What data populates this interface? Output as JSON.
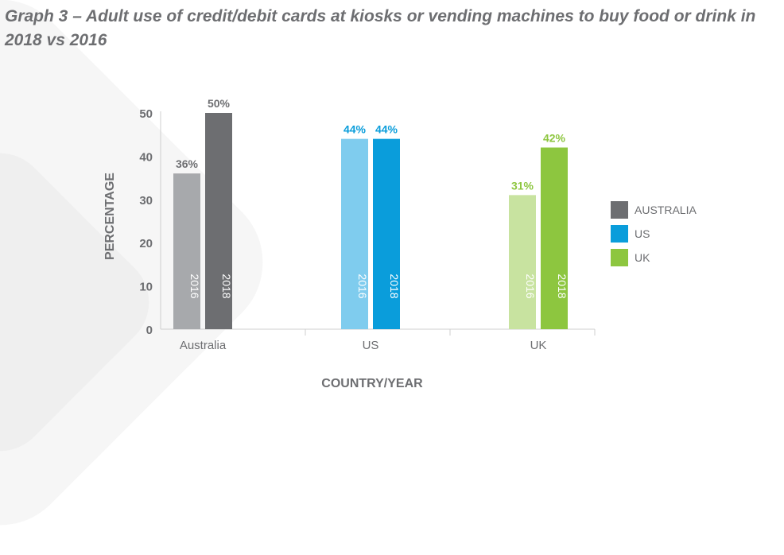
{
  "title": "Graph 3 – Adult use of credit/debit cards at kiosks or vending machines to buy food or drink in 2018 vs 2016",
  "chart_data": {
    "type": "bar",
    "title": "Graph 3 – Adult use of credit/debit cards at kiosks or vending machines to buy food or drink in 2018 vs 2016",
    "xlabel": "COUNTRY/YEAR",
    "ylabel": "PERCENTAGE",
    "ylim": [
      0,
      50
    ],
    "yticks": [
      0,
      10,
      20,
      30,
      40,
      50
    ],
    "grid": false,
    "legend_position": "right",
    "categories": [
      "Australia",
      "US",
      "UK"
    ],
    "groups": [
      {
        "category": "Australia",
        "legend": "AUSTRALIA",
        "bars": [
          {
            "year": "2016",
            "value": 36,
            "label": "36%",
            "color": "#a7a9ac"
          },
          {
            "year": "2018",
            "value": 50,
            "label": "50%",
            "color": "#6d6e71"
          }
        ],
        "label_color": "#6d6e71",
        "legend_color": "#6d6e71"
      },
      {
        "category": "US",
        "legend": "US",
        "bars": [
          {
            "year": "2016",
            "value": 44,
            "label": "44%",
            "color": "#7fccee"
          },
          {
            "year": "2018",
            "value": 44,
            "label": "44%",
            "color": "#0a9ddb"
          }
        ],
        "label_color": "#0a9ddb",
        "legend_color": "#0a9ddb"
      },
      {
        "category": "UK",
        "legend": "UK",
        "bars": [
          {
            "year": "2016",
            "value": 31,
            "label": "31%",
            "color": "#c8e3a0"
          },
          {
            "year": "2018",
            "value": 42,
            "label": "42%",
            "color": "#8dc63f"
          }
        ],
        "label_color": "#8dc63f",
        "legend_color": "#8dc63f"
      }
    ]
  }
}
